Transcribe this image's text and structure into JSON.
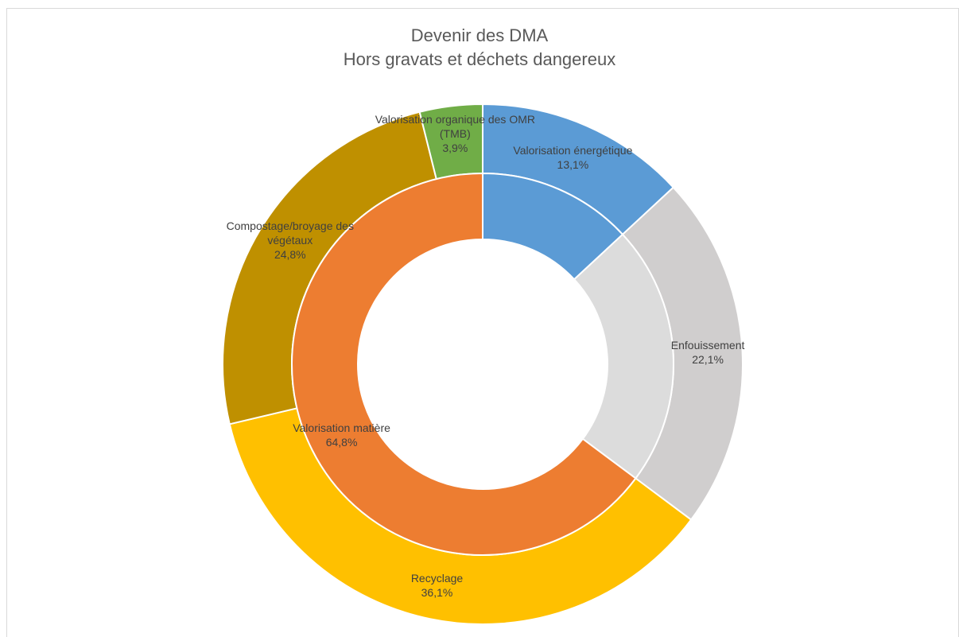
{
  "chart_data": {
    "type": "donut",
    "title": "Devenir des DMA",
    "subtitle": "Hors gravats et déchets dangereux",
    "series": [
      {
        "labels": [
          "Valorisation énergétique",
          "Enfouissement",
          "Recyclage",
          "Compostage/broyage des végétaux",
          "Valorisation organique des OMR (TMB)"
        ],
        "values": [
          13.1,
          22.1,
          36.1,
          24.8,
          3.9
        ],
        "value_labels": [
          "13,1%",
          "22,1%",
          "36,1%",
          "24,8%",
          "3,9%"
        ],
        "colors": [
          "#5b9bd5",
          "#d0cece",
          "#ffc000",
          "#bf9000",
          "#70ad47"
        ]
      },
      {
        "labels": [
          null,
          null,
          "Valorisation matière"
        ],
        "values": [
          13.1,
          22.1,
          64.8
        ],
        "value_labels": [
          null,
          null,
          "64,8%"
        ],
        "colors": [
          "#5b9bd5",
          "#dcdcdc",
          "#ed7d31"
        ]
      }
    ]
  }
}
